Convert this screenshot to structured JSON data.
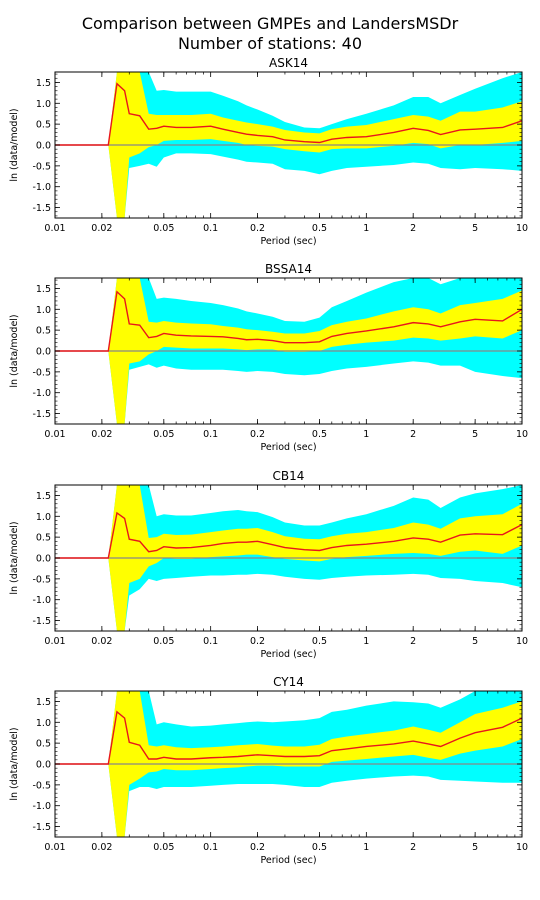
{
  "figure": {
    "title_line1": "Comparison between GMPEs and LandersMSDr",
    "title_line2": "Number of stations: 40"
  },
  "chart_data": [
    {
      "type": "area",
      "title": "ASK14",
      "xlabel": "Period (sec)",
      "ylabel": "ln (data/model)",
      "xscale": "log",
      "xlim": [
        0.01,
        10
      ],
      "ylim": [
        -1.75,
        1.75
      ],
      "xticks": [
        "0.01",
        "0.02",
        "0.05",
        "0.1",
        "0.2",
        "0.5",
        "1",
        "2",
        "5",
        "10"
      ],
      "yticks": [
        "-1.5",
        "-1.0",
        "-0.5",
        "0.0",
        "0.5",
        "1.0",
        "1.5"
      ],
      "reference_line": 0,
      "colors": {
        "mean": "#e8161b",
        "inner_band": "#ffff00",
        "outer_band": "#00ffff",
        "zero_line": "#888888"
      },
      "x": [
        0.01,
        0.022,
        0.025,
        0.028,
        0.03,
        0.035,
        0.04,
        0.045,
        0.05,
        0.06,
        0.075,
        0.1,
        0.12,
        0.15,
        0.17,
        0.2,
        0.25,
        0.3,
        0.4,
        0.5,
        0.6,
        0.75,
        1,
        1.5,
        2,
        2.5,
        3,
        4,
        5,
        7.5,
        10
      ],
      "series": [
        {
          "role": "mean",
          "values": [
            0,
            0,
            1.47,
            1.3,
            0.75,
            0.7,
            0.38,
            0.4,
            0.45,
            0.42,
            0.42,
            0.45,
            0.38,
            0.3,
            0.26,
            0.23,
            0.2,
            0.12,
            0.08,
            0.06,
            0.14,
            0.18,
            0.2,
            0.3,
            0.4,
            0.35,
            0.25,
            0.36,
            0.38,
            0.42,
            0.58
          ]
        },
        {
          "role": "mean_plus_sigma",
          "values": [
            0,
            0,
            1.75,
            1.75,
            1.75,
            1.75,
            0.75,
            0.72,
            0.72,
            0.72,
            0.72,
            0.75,
            0.66,
            0.58,
            0.54,
            0.5,
            0.44,
            0.36,
            0.3,
            0.28,
            0.38,
            0.44,
            0.48,
            0.62,
            0.72,
            0.68,
            0.58,
            0.8,
            0.8,
            0.9,
            1.05
          ]
        },
        {
          "role": "mean_minus_sigma",
          "values": [
            0,
            0,
            -1.75,
            -1.75,
            -0.3,
            -0.2,
            -0.05,
            0.0,
            0.1,
            0.12,
            0.12,
            0.14,
            0.1,
            0.05,
            0.0,
            -0.02,
            -0.04,
            -0.1,
            -0.15,
            -0.18,
            -0.1,
            -0.08,
            -0.08,
            -0.02,
            0.05,
            0.02,
            -0.08,
            0.0,
            0.0,
            0.05,
            0.1
          ]
        },
        {
          "role": "mean_plus_2sigma",
          "values": [
            0,
            0,
            1.75,
            1.75,
            1.75,
            1.75,
            1.75,
            1.3,
            1.32,
            1.28,
            1.28,
            1.28,
            1.18,
            1.05,
            0.95,
            0.85,
            0.7,
            0.55,
            0.42,
            0.4,
            0.5,
            0.62,
            0.75,
            0.95,
            1.15,
            1.15,
            1.0,
            1.2,
            1.35,
            1.6,
            1.75
          ]
        },
        {
          "role": "mean_minus_2sigma",
          "values": [
            0,
            0,
            -1.75,
            -1.75,
            -0.55,
            -0.5,
            -0.45,
            -0.52,
            -0.3,
            -0.2,
            -0.2,
            -0.22,
            -0.28,
            -0.35,
            -0.4,
            -0.42,
            -0.45,
            -0.58,
            -0.62,
            -0.7,
            -0.62,
            -0.55,
            -0.52,
            -0.48,
            -0.42,
            -0.45,
            -0.55,
            -0.58,
            -0.55,
            -0.58,
            -0.62
          ]
        }
      ]
    },
    {
      "type": "area",
      "title": "BSSA14",
      "xlabel": "Period (sec)",
      "ylabel": "ln (data/model)",
      "xscale": "log",
      "xlim": [
        0.01,
        10
      ],
      "ylim": [
        -1.75,
        1.75
      ],
      "xticks": [
        "0.01",
        "0.02",
        "0.05",
        "0.1",
        "0.2",
        "0.5",
        "1",
        "2",
        "5",
        "10"
      ],
      "yticks": [
        "-1.5",
        "-1.0",
        "-0.5",
        "0.0",
        "0.5",
        "1.0",
        "1.5"
      ],
      "reference_line": 0,
      "colors": {
        "mean": "#e8161b",
        "inner_band": "#ffff00",
        "outer_band": "#00ffff",
        "zero_line": "#888888"
      },
      "x": [
        0.01,
        0.022,
        0.025,
        0.028,
        0.03,
        0.035,
        0.04,
        0.045,
        0.05,
        0.06,
        0.075,
        0.1,
        0.12,
        0.15,
        0.17,
        0.2,
        0.25,
        0.3,
        0.4,
        0.5,
        0.6,
        0.75,
        1,
        1.5,
        2,
        2.5,
        3,
        4,
        5,
        7.5,
        10
      ],
      "series": [
        {
          "role": "mean",
          "values": [
            0,
            0,
            1.42,
            1.25,
            0.65,
            0.62,
            0.32,
            0.35,
            0.42,
            0.38,
            0.36,
            0.35,
            0.34,
            0.3,
            0.27,
            0.28,
            0.25,
            0.2,
            0.2,
            0.22,
            0.35,
            0.42,
            0.48,
            0.58,
            0.68,
            0.65,
            0.58,
            0.7,
            0.76,
            0.72,
            1.0
          ]
        },
        {
          "role": "mean_plus_sigma",
          "values": [
            0,
            0,
            1.75,
            1.75,
            1.75,
            1.75,
            0.7,
            0.68,
            0.72,
            0.68,
            0.66,
            0.64,
            0.6,
            0.56,
            0.52,
            0.5,
            0.46,
            0.42,
            0.42,
            0.48,
            0.62,
            0.7,
            0.78,
            0.95,
            1.05,
            1.0,
            0.9,
            1.1,
            1.15,
            1.25,
            1.45
          ]
        },
        {
          "role": "mean_minus_sigma",
          "values": [
            0,
            0,
            -1.75,
            -1.75,
            -0.3,
            -0.25,
            -0.08,
            0.0,
            0.1,
            0.08,
            0.06,
            0.06,
            0.06,
            0.04,
            0.02,
            0.04,
            0.04,
            -0.02,
            -0.02,
            0.0,
            0.1,
            0.15,
            0.2,
            0.25,
            0.32,
            0.3,
            0.25,
            0.3,
            0.35,
            0.3,
            0.5
          ]
        },
        {
          "role": "mean_plus_2sigma",
          "values": [
            0,
            0,
            1.75,
            1.75,
            1.75,
            1.75,
            1.75,
            1.25,
            1.28,
            1.25,
            1.2,
            1.15,
            1.1,
            1.02,
            0.95,
            0.9,
            0.82,
            0.72,
            0.7,
            0.8,
            1.05,
            1.2,
            1.4,
            1.65,
            1.75,
            1.75,
            1.6,
            1.75,
            1.75,
            1.75,
            1.75
          ]
        },
        {
          "role": "mean_minus_2sigma",
          "values": [
            0,
            0,
            -1.75,
            -1.75,
            -0.45,
            -0.38,
            -0.32,
            -0.4,
            -0.35,
            -0.42,
            -0.45,
            -0.45,
            -0.45,
            -0.48,
            -0.5,
            -0.48,
            -0.5,
            -0.55,
            -0.58,
            -0.55,
            -0.48,
            -0.42,
            -0.38,
            -0.3,
            -0.25,
            -0.28,
            -0.35,
            -0.35,
            -0.5,
            -0.6,
            -0.65
          ]
        }
      ]
    },
    {
      "type": "area",
      "title": "CB14",
      "xlabel": "Period (sec)",
      "ylabel": "ln (data/model)",
      "xscale": "log",
      "xlim": [
        0.01,
        10
      ],
      "ylim": [
        -1.75,
        1.75
      ],
      "xticks": [
        "0.01",
        "0.02",
        "0.05",
        "0.1",
        "0.2",
        "0.5",
        "1",
        "2",
        "5",
        "10"
      ],
      "yticks": [
        "-1.5",
        "-1.0",
        "-0.5",
        "0.0",
        "0.5",
        "1.0",
        "1.5"
      ],
      "reference_line": 0,
      "colors": {
        "mean": "#e8161b",
        "inner_band": "#ffff00",
        "outer_band": "#00ffff",
        "zero_line": "#888888"
      },
      "x": [
        0.01,
        0.022,
        0.025,
        0.028,
        0.03,
        0.035,
        0.04,
        0.045,
        0.05,
        0.06,
        0.075,
        0.1,
        0.12,
        0.15,
        0.17,
        0.2,
        0.25,
        0.3,
        0.4,
        0.5,
        0.6,
        0.75,
        1,
        1.5,
        2,
        2.5,
        3,
        4,
        5,
        7.5,
        10
      ],
      "series": [
        {
          "role": "mean",
          "values": [
            0,
            0,
            1.08,
            0.95,
            0.45,
            0.4,
            0.15,
            0.18,
            0.27,
            0.24,
            0.25,
            0.3,
            0.35,
            0.38,
            0.38,
            0.4,
            0.32,
            0.25,
            0.2,
            0.18,
            0.25,
            0.3,
            0.33,
            0.4,
            0.48,
            0.45,
            0.38,
            0.55,
            0.58,
            0.56,
            0.8
          ]
        },
        {
          "role": "mean_plus_sigma",
          "values": [
            0,
            0,
            1.75,
            1.75,
            1.75,
            1.75,
            0.48,
            0.5,
            0.58,
            0.55,
            0.56,
            0.62,
            0.66,
            0.7,
            0.7,
            0.72,
            0.62,
            0.52,
            0.46,
            0.45,
            0.52,
            0.58,
            0.62,
            0.72,
            0.85,
            0.8,
            0.7,
            0.95,
            1.0,
            1.05,
            1.3
          ]
        },
        {
          "role": "mean_minus_sigma",
          "values": [
            0,
            0,
            -1.75,
            -1.75,
            -0.6,
            -0.5,
            -0.2,
            -0.12,
            0.0,
            -0.02,
            -0.02,
            0.02,
            0.04,
            0.06,
            0.08,
            0.08,
            0.02,
            -0.02,
            -0.06,
            -0.08,
            -0.02,
            0.02,
            0.05,
            0.1,
            0.12,
            0.1,
            0.05,
            0.15,
            0.18,
            0.1,
            0.3
          ]
        },
        {
          "role": "mean_plus_2sigma",
          "values": [
            0,
            0,
            1.75,
            1.75,
            1.75,
            1.75,
            1.75,
            1.0,
            1.05,
            1.02,
            1.02,
            1.08,
            1.12,
            1.15,
            1.12,
            1.1,
            0.98,
            0.85,
            0.78,
            0.78,
            0.85,
            0.95,
            1.05,
            1.25,
            1.45,
            1.4,
            1.2,
            1.45,
            1.55,
            1.65,
            1.75
          ]
        },
        {
          "role": "mean_minus_2sigma",
          "values": [
            0,
            0,
            -1.75,
            -1.75,
            -0.9,
            -0.75,
            -0.5,
            -0.55,
            -0.5,
            -0.48,
            -0.45,
            -0.42,
            -0.42,
            -0.4,
            -0.4,
            -0.38,
            -0.4,
            -0.45,
            -0.5,
            -0.52,
            -0.48,
            -0.45,
            -0.42,
            -0.4,
            -0.38,
            -0.4,
            -0.48,
            -0.5,
            -0.55,
            -0.6,
            -0.7
          ]
        }
      ]
    },
    {
      "type": "area",
      "title": "CY14",
      "xlabel": "Period (sec)",
      "ylabel": "ln (data/model)",
      "xscale": "log",
      "xlim": [
        0.01,
        10
      ],
      "ylim": [
        -1.75,
        1.75
      ],
      "xticks": [
        "0.01",
        "0.02",
        "0.05",
        "0.1",
        "0.2",
        "0.5",
        "1",
        "2",
        "5",
        "10"
      ],
      "yticks": [
        "-1.5",
        "-1.0",
        "-0.5",
        "0.0",
        "0.5",
        "1.0",
        "1.5"
      ],
      "reference_line": 0,
      "colors": {
        "mean": "#e8161b",
        "inner_band": "#ffff00",
        "outer_band": "#00ffff",
        "zero_line": "#888888"
      },
      "x": [
        0.01,
        0.022,
        0.025,
        0.028,
        0.03,
        0.035,
        0.04,
        0.045,
        0.05,
        0.06,
        0.075,
        0.1,
        0.12,
        0.15,
        0.17,
        0.2,
        0.25,
        0.3,
        0.4,
        0.5,
        0.6,
        0.75,
        1,
        1.5,
        2,
        2.5,
        3,
        4,
        5,
        7.5,
        10
      ],
      "series": [
        {
          "role": "mean",
          "values": [
            0,
            0,
            1.25,
            1.1,
            0.52,
            0.45,
            0.12,
            0.12,
            0.16,
            0.12,
            0.12,
            0.15,
            0.16,
            0.18,
            0.2,
            0.22,
            0.2,
            0.18,
            0.18,
            0.2,
            0.32,
            0.36,
            0.42,
            0.48,
            0.55,
            0.48,
            0.42,
            0.62,
            0.75,
            0.88,
            1.1
          ]
        },
        {
          "role": "mean_plus_sigma",
          "values": [
            0,
            0,
            1.75,
            1.75,
            1.75,
            1.75,
            0.45,
            0.42,
            0.45,
            0.4,
            0.38,
            0.4,
            0.42,
            0.45,
            0.46,
            0.48,
            0.44,
            0.42,
            0.42,
            0.46,
            0.6,
            0.66,
            0.72,
            0.8,
            0.9,
            0.82,
            0.75,
            1.0,
            1.2,
            1.35,
            1.5
          ]
        },
        {
          "role": "mean_minus_sigma",
          "values": [
            0,
            0,
            -1.75,
            -1.75,
            -0.5,
            -0.35,
            -0.2,
            -0.18,
            -0.12,
            -0.15,
            -0.15,
            -0.12,
            -0.1,
            -0.08,
            -0.06,
            -0.04,
            -0.04,
            -0.06,
            -0.06,
            -0.06,
            0.05,
            0.08,
            0.12,
            0.18,
            0.22,
            0.15,
            0.1,
            0.25,
            0.32,
            0.42,
            0.6
          ]
        },
        {
          "role": "mean_plus_2sigma",
          "values": [
            0,
            0,
            1.75,
            1.75,
            1.75,
            1.75,
            1.75,
            0.95,
            1.0,
            0.95,
            0.9,
            0.92,
            0.95,
            0.98,
            1.0,
            1.02,
            1.0,
            1.02,
            1.05,
            1.1,
            1.25,
            1.3,
            1.4,
            1.5,
            1.48,
            1.45,
            1.35,
            1.55,
            1.75,
            1.75,
            1.75
          ]
        },
        {
          "role": "mean_minus_2sigma",
          "values": [
            0,
            0,
            -1.75,
            -1.75,
            -0.65,
            -0.55,
            -0.55,
            -0.6,
            -0.55,
            -0.55,
            -0.55,
            -0.52,
            -0.5,
            -0.48,
            -0.48,
            -0.48,
            -0.48,
            -0.5,
            -0.55,
            -0.55,
            -0.45,
            -0.4,
            -0.35,
            -0.3,
            -0.28,
            -0.3,
            -0.38,
            -0.4,
            -0.42,
            -0.45,
            -0.45
          ]
        }
      ]
    }
  ]
}
